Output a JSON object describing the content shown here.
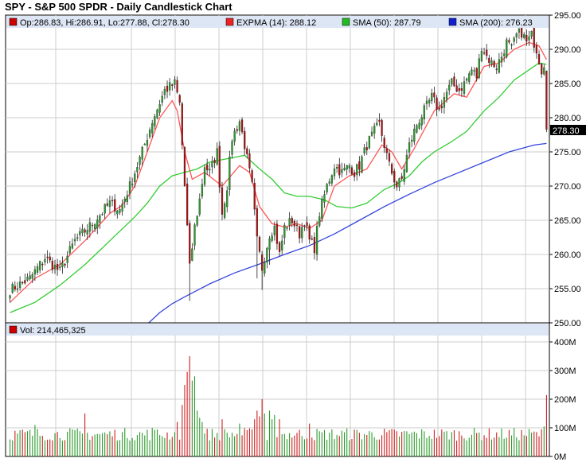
{
  "title": "SPY - S&P 500 SPDR - Daily Candlestick Chart",
  "colors": {
    "up": "#2c9a2c",
    "down": "#b01010",
    "exp": "#ff5555",
    "sma50": "#33cc33",
    "sma200": "#3344dd",
    "volUp": "#2c9a2c",
    "volDown": "#cc2020",
    "grid": "#cccccc",
    "legendBg": "#dde6f4"
  },
  "legend": {
    "ohlc": "Op:286.83, Hi:286.91, Lo:277.88, Cl:278.30",
    "expma": "EXPMA (14): 288.12",
    "sma50": "SMA (50): 287.79",
    "sma200": "SMA (200): 276.23"
  },
  "vol_legend": "Vol: 214,465,325",
  "last_price_label": "278.30",
  "chart_data": [
    {
      "type": "candlestick",
      "title": "SPY - S&P 500 SPDR - Daily Candlestick Chart",
      "ylim": [
        250,
        295
      ],
      "y_ticks": [
        "295.00",
        "290.00",
        "285.00",
        "280.00",
        "275.00",
        "270.00",
        "265.00",
        "260.00",
        "255.00",
        "250.00"
      ],
      "anchors": [
        {
          "i": 0,
          "v": 254.8
        },
        {
          "i": 8,
          "v": 256.5
        },
        {
          "i": 14,
          "v": 259.5
        },
        {
          "i": 20,
          "v": 257.5
        },
        {
          "i": 26,
          "v": 262
        },
        {
          "i": 33,
          "v": 264.5
        },
        {
          "i": 40,
          "v": 267.5
        },
        {
          "i": 44,
          "v": 266.5
        },
        {
          "i": 48,
          "v": 270
        },
        {
          "i": 53,
          "v": 275
        },
        {
          "i": 57,
          "v": 279.5
        },
        {
          "i": 62,
          "v": 284
        },
        {
          "i": 66,
          "v": 285
        },
        {
          "i": 68,
          "v": 282
        },
        {
          "i": 70,
          "v": 270
        },
        {
          "i": 72,
          "v": 258
        },
        {
          "i": 74,
          "v": 264
        },
        {
          "i": 76,
          "v": 268
        },
        {
          "i": 78,
          "v": 273
        },
        {
          "i": 80,
          "v": 272
        },
        {
          "i": 83,
          "v": 275
        },
        {
          "i": 85,
          "v": 266
        },
        {
          "i": 87,
          "v": 270
        },
        {
          "i": 89,
          "v": 277
        },
        {
          "i": 92,
          "v": 279.5
        },
        {
          "i": 94,
          "v": 276
        },
        {
          "i": 97,
          "v": 270
        },
        {
          "i": 99,
          "v": 262
        },
        {
          "i": 101,
          "v": 258
        },
        {
          "i": 104,
          "v": 263
        },
        {
          "i": 106,
          "v": 264
        },
        {
          "i": 108,
          "v": 260
        },
        {
          "i": 110,
          "v": 264
        },
        {
          "i": 113,
          "v": 265
        },
        {
          "i": 116,
          "v": 263
        },
        {
          "i": 118,
          "v": 265
        },
        {
          "i": 120,
          "v": 262
        },
        {
          "i": 122,
          "v": 261
        },
        {
          "i": 124,
          "v": 266
        },
        {
          "i": 127,
          "v": 270
        },
        {
          "i": 130,
          "v": 273
        },
        {
          "i": 133,
          "v": 272
        },
        {
          "i": 136,
          "v": 273
        },
        {
          "i": 138,
          "v": 272
        },
        {
          "i": 140,
          "v": 273
        },
        {
          "i": 143,
          "v": 276
        },
        {
          "i": 146,
          "v": 278
        },
        {
          "i": 148,
          "v": 279
        },
        {
          "i": 150,
          "v": 276
        },
        {
          "i": 152,
          "v": 273
        },
        {
          "i": 155,
          "v": 270
        },
        {
          "i": 157,
          "v": 271
        },
        {
          "i": 160,
          "v": 276
        },
        {
          "i": 163,
          "v": 279
        },
        {
          "i": 166,
          "v": 281
        },
        {
          "i": 169,
          "v": 283
        },
        {
          "i": 172,
          "v": 281
        },
        {
          "i": 174,
          "v": 283
        },
        {
          "i": 177,
          "v": 285
        },
        {
          "i": 180,
          "v": 284
        },
        {
          "i": 182,
          "v": 285
        },
        {
          "i": 185,
          "v": 287
        },
        {
          "i": 187,
          "v": 286
        },
        {
          "i": 189,
          "v": 290.5
        },
        {
          "i": 191,
          "v": 289
        },
        {
          "i": 193,
          "v": 288
        },
        {
          "i": 195,
          "v": 287.5
        },
        {
          "i": 197,
          "v": 289
        },
        {
          "i": 199,
          "v": 291
        },
        {
          "i": 201,
          "v": 290
        },
        {
          "i": 203,
          "v": 292
        },
        {
          "i": 205,
          "v": 292.5
        },
        {
          "i": 207,
          "v": 291
        },
        {
          "i": 209,
          "v": 292
        },
        {
          "i": 211,
          "v": 290
        },
        {
          "i": 213,
          "v": 287
        },
        {
          "i": 214,
          "v": 288
        },
        {
          "i": 215,
          "v": 278.3
        }
      ],
      "overlays": {
        "expma14": [
          [
            0,
            253
          ],
          [
            10,
            256.5
          ],
          [
            20,
            258.5
          ],
          [
            30,
            262
          ],
          [
            40,
            266
          ],
          [
            45,
            267.2
          ],
          [
            50,
            270
          ],
          [
            55,
            275
          ],
          [
            60,
            280
          ],
          [
            65,
            282.5
          ],
          [
            67,
            281
          ],
          [
            70,
            275
          ],
          [
            73,
            271
          ],
          [
            78,
            272
          ],
          [
            85,
            270
          ],
          [
            92,
            273
          ],
          [
            96,
            272
          ],
          [
            100,
            267
          ],
          [
            105,
            264.5
          ],
          [
            110,
            264
          ],
          [
            115,
            264.5
          ],
          [
            120,
            263.8
          ],
          [
            125,
            265
          ],
          [
            130,
            270
          ],
          [
            136,
            271.5
          ],
          [
            143,
            272.5
          ],
          [
            149,
            276
          ],
          [
            153,
            275
          ],
          [
            157,
            272.5
          ],
          [
            162,
            275.5
          ],
          [
            170,
            281
          ],
          [
            178,
            283.5
          ],
          [
            183,
            283
          ],
          [
            190,
            287.5
          ],
          [
            196,
            288
          ],
          [
            202,
            290
          ],
          [
            208,
            291
          ],
          [
            212,
            290.5
          ],
          [
            215,
            288.5
          ]
        ],
        "sma50": [
          [
            0,
            251.5
          ],
          [
            10,
            253
          ],
          [
            20,
            255.5
          ],
          [
            30,
            258.5
          ],
          [
            40,
            262
          ],
          [
            50,
            265.5
          ],
          [
            55,
            267.5
          ],
          [
            60,
            270
          ],
          [
            65,
            271.5
          ],
          [
            70,
            272
          ],
          [
            75,
            272.5
          ],
          [
            80,
            273.5
          ],
          [
            87,
            274
          ],
          [
            94,
            274.5
          ],
          [
            100,
            272.5
          ],
          [
            105,
            271
          ],
          [
            110,
            269
          ],
          [
            115,
            268.5
          ],
          [
            120,
            268.5
          ],
          [
            126,
            268
          ],
          [
            131,
            267
          ],
          [
            137,
            266.8
          ],
          [
            143,
            267.5
          ],
          [
            150,
            269.5
          ],
          [
            156,
            270.5
          ],
          [
            160,
            271.5
          ],
          [
            165,
            273.5
          ],
          [
            170,
            275
          ],
          [
            177,
            276.5
          ],
          [
            183,
            278
          ],
          [
            190,
            281
          ],
          [
            196,
            283
          ],
          [
            202,
            285.5
          ],
          [
            208,
            287
          ],
          [
            212,
            288
          ],
          [
            215,
            287.8
          ]
        ],
        "sma200": [
          [
            55,
            249.8
          ],
          [
            60,
            251.5
          ],
          [
            65,
            252.8
          ],
          [
            70,
            253.8
          ],
          [
            80,
            255.7
          ],
          [
            90,
            257.3
          ],
          [
            100,
            258.6
          ],
          [
            110,
            260
          ],
          [
            120,
            261.3
          ],
          [
            130,
            263
          ],
          [
            140,
            265
          ],
          [
            150,
            267
          ],
          [
            160,
            268.8
          ],
          [
            170,
            270.5
          ],
          [
            180,
            272
          ],
          [
            190,
            273.5
          ],
          [
            200,
            275
          ],
          [
            210,
            276
          ],
          [
            215,
            276.23
          ]
        ]
      },
      "volume": {
        "label": "Vol: 214,465,325",
        "ylim": [
          0,
          400000000
        ],
        "y_ticks": [
          "400M",
          "300M",
          "200M",
          "100M",
          "0M"
        ],
        "spikes": [
          {
            "i": 10,
            "v": 110000000
          },
          {
            "i": 30,
            "v": 150000000
          },
          {
            "i": 57,
            "v": 100000000
          },
          {
            "i": 67,
            "v": 120000000
          },
          {
            "i": 69,
            "v": 180000000
          },
          {
            "i": 70,
            "v": 250000000
          },
          {
            "i": 71,
            "v": 295000000
          },
          {
            "i": 72,
            "v": 350000000
          },
          {
            "i": 73,
            "v": 265000000
          },
          {
            "i": 74,
            "v": 280000000
          },
          {
            "i": 75,
            "v": 160000000
          },
          {
            "i": 76,
            "v": 135000000
          },
          {
            "i": 77,
            "v": 120000000
          },
          {
            "i": 85,
            "v": 130000000
          },
          {
            "i": 92,
            "v": 115000000
          },
          {
            "i": 98,
            "v": 130000000
          },
          {
            "i": 99,
            "v": 160000000
          },
          {
            "i": 100,
            "v": 140000000
          },
          {
            "i": 101,
            "v": 200000000
          },
          {
            "i": 102,
            "v": 150000000
          },
          {
            "i": 104,
            "v": 160000000
          },
          {
            "i": 105,
            "v": 130000000
          },
          {
            "i": 106,
            "v": 145000000
          },
          {
            "i": 108,
            "v": 130000000
          },
          {
            "i": 120,
            "v": 115000000
          },
          {
            "i": 214,
            "v": 105000000
          },
          {
            "i": 215,
            "v": 214465325
          }
        ]
      }
    }
  ]
}
